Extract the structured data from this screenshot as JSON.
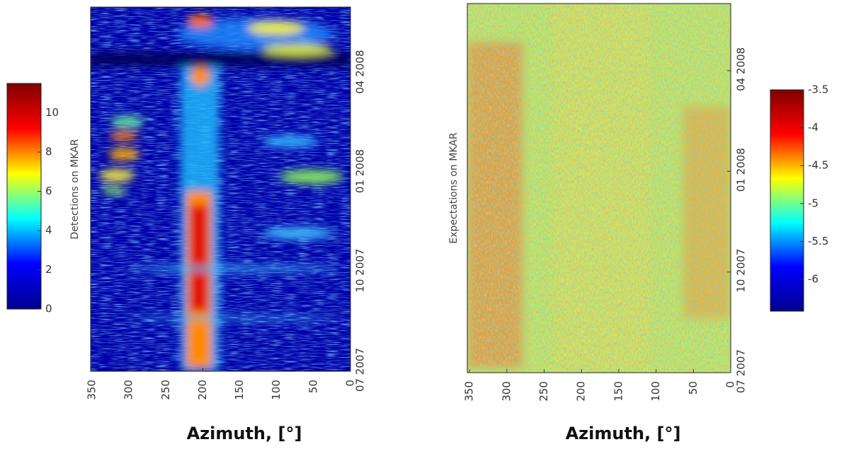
{
  "chart_data": [
    {
      "type": "heatmap",
      "xlabel": "Azimuth, [°]",
      "ylabel": "Detections on MKAR",
      "xlim": [
        352,
        0
      ],
      "xticks": [
        350,
        300,
        250,
        200,
        150,
        100,
        50,
        0
      ],
      "ylim": [
        "07 2007",
        "06 2008"
      ],
      "yticks": [
        "07 2007",
        "10 2007",
        "01 2008",
        "04 2008"
      ],
      "colorbar": {
        "colormap": "jet",
        "clim": [
          0,
          11.5
        ],
        "ticks": [
          0,
          2,
          4,
          6,
          8,
          10
        ]
      }
    },
    {
      "type": "heatmap",
      "xlabel": "Azimuth, [°]",
      "ylabel": "Expectations on MKAR",
      "xlim": [
        353,
        0
      ],
      "xticks": [
        350,
        300,
        250,
        200,
        150,
        100,
        50,
        0
      ],
      "ylim": [
        "07 2007",
        "06 2008"
      ],
      "yticks": [
        "07 2007",
        "10 2007",
        "01 2008",
        "04 2008"
      ],
      "colorbar": {
        "colormap": "jet",
        "clim": [
          -6.42,
          -3.5
        ],
        "ticks": [
          -3.5,
          -4,
          -4.5,
          -5,
          -5.5,
          -6
        ]
      }
    }
  ]
}
